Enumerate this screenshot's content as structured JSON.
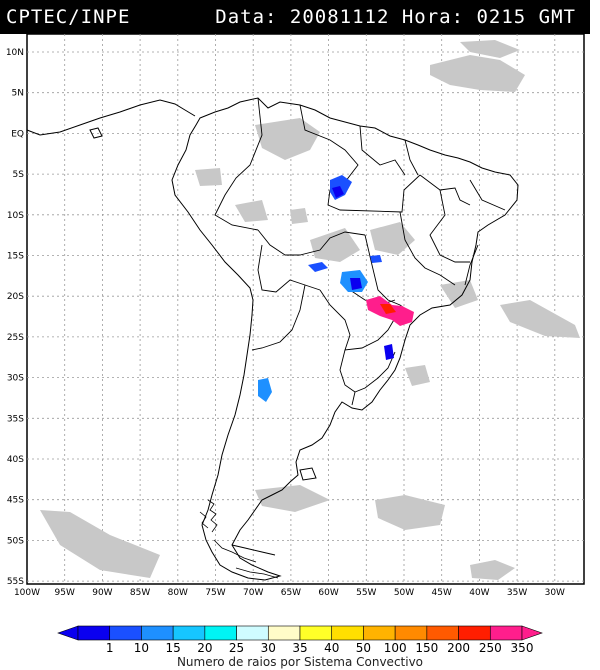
{
  "header": {
    "agency": "CPTEC/INPE",
    "datetime": "Data: 20081112 Hora: 0215 GMT"
  },
  "map": {
    "lat_labels": [
      "10N",
      "5N",
      "EQ",
      "5S",
      "10S",
      "15S",
      "20S",
      "25S",
      "30S",
      "35S",
      "40S",
      "45S",
      "50S",
      "55S"
    ],
    "lon_labels": [
      "100W",
      "95W",
      "90W",
      "85W",
      "80W",
      "75W",
      "70W",
      "65W",
      "60W",
      "55W",
      "50W",
      "45W",
      "40W",
      "35W",
      "30W"
    ],
    "colors": {
      "cloud": "#c8c8c8",
      "grid": "#9a9a9a",
      "border": "#000000"
    }
  },
  "colorbar": {
    "labels": [
      "1",
      "10",
      "15",
      "20",
      "25",
      "30",
      "35",
      "40",
      "50",
      "100",
      "150",
      "200",
      "250",
      "350"
    ],
    "colors": [
      "#0a00f0",
      "#1a50ff",
      "#1e90ff",
      "#16c6ff",
      "#00f4f4",
      "#cffcff",
      "#fffcc8",
      "#ffff28",
      "#ffdf00",
      "#ffb300",
      "#ff8a00",
      "#ff5a00",
      "#ff1e00",
      "#ff1e8c"
    ],
    "caption": "Numero de raios por Sistema Convectivo"
  }
}
